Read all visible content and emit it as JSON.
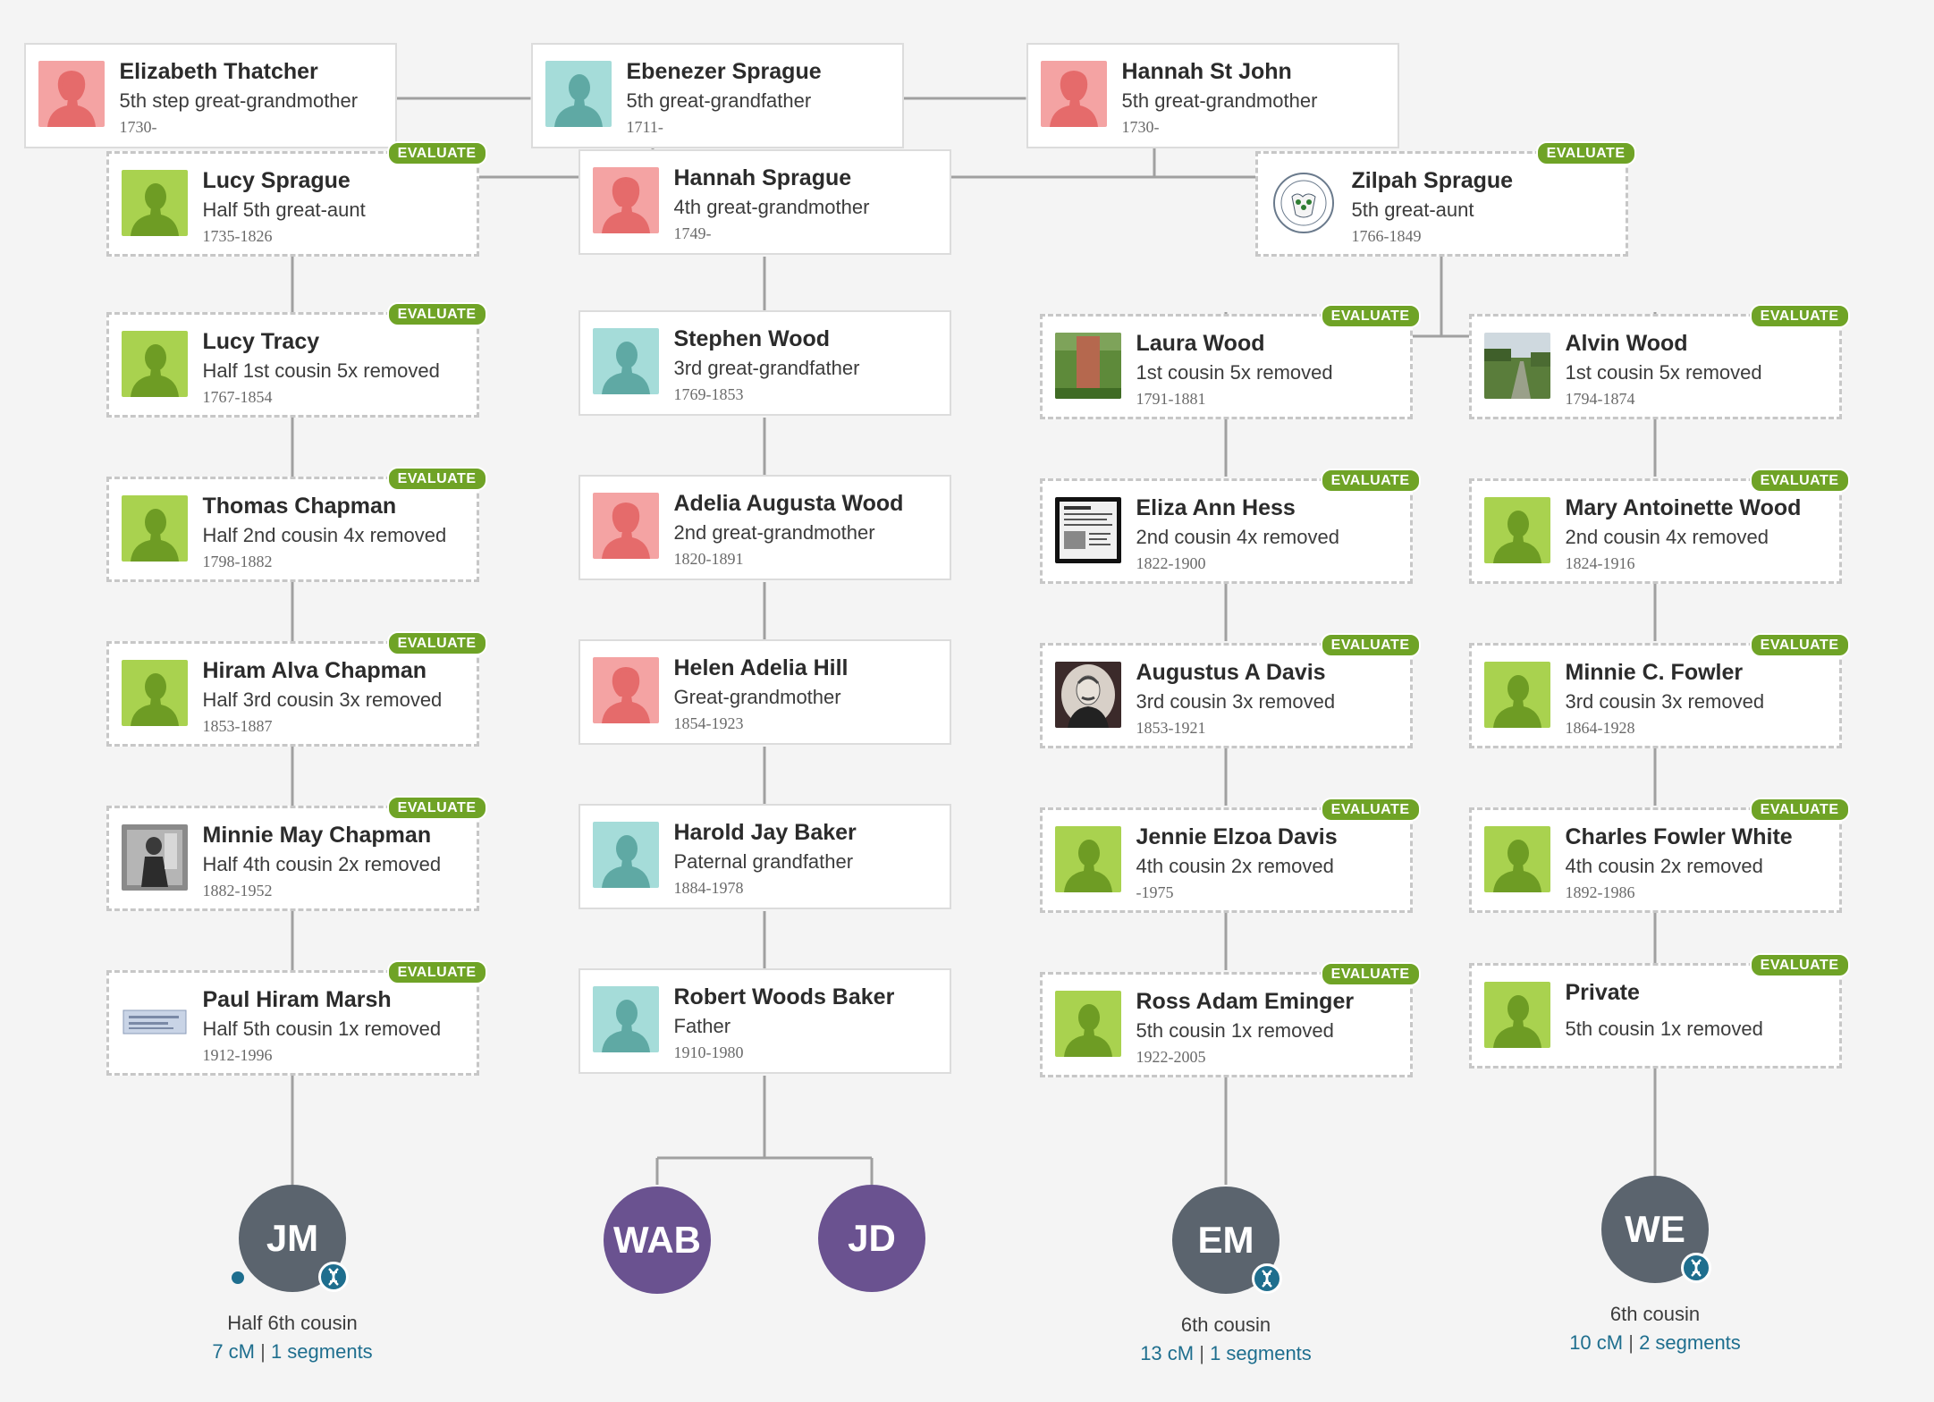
{
  "badge_label": "EVALUATE",
  "colors": {
    "female": "#f4a3a3",
    "male": "#a5dcd9",
    "match_green": "#a9d24f",
    "evaluate_green": "#6fa326",
    "match_gray": "#5b646e",
    "match_purple": "#6a5290",
    "link_blue": "#1e6e8e"
  },
  "top": [
    {
      "name": "Elizabeth Thatcher",
      "relation": "5th step great-grandmother",
      "dates": "1730-",
      "avatar": "female-silhouette-icon"
    },
    {
      "name": "Ebenezer Sprague",
      "relation": "5th great-grandfather",
      "dates": "1711-",
      "avatar": "male-silhouette-icon"
    },
    {
      "name": "Hannah St John",
      "relation": "5th great-grandmother",
      "dates": "1730-",
      "avatar": "female-silhouette-icon"
    }
  ],
  "col1": [
    {
      "name": "Lucy Sprague",
      "relation": "Half 5th great-aunt",
      "dates": "1735-1826",
      "avatar": "green-silhouette-icon"
    },
    {
      "name": "Lucy Tracy",
      "relation": "Half 1st cousin 5x removed",
      "dates": "1767-1854",
      "avatar": "green-silhouette-icon"
    },
    {
      "name": "Thomas Chapman",
      "relation": "Half 2nd cousin 4x removed",
      "dates": "1798-1882",
      "avatar": "green-silhouette-icon"
    },
    {
      "name": "Hiram Alva Chapman",
      "relation": "Half 3rd cousin 3x removed",
      "dates": "1853-1887",
      "avatar": "green-silhouette-icon"
    },
    {
      "name": "Minnie May Chapman",
      "relation": "Half 4th cousin 2x removed",
      "dates": "1882-1952",
      "avatar": "old-photo-icon"
    },
    {
      "name": "Paul Hiram Marsh",
      "relation": "Half 5th cousin 1x removed",
      "dates": "1912-1996",
      "avatar": "document-photo-icon"
    }
  ],
  "col2": [
    {
      "name": "Hannah Sprague",
      "relation": "4th great-grandmother",
      "dates": "1749-",
      "avatar": "female-silhouette-icon"
    },
    {
      "name": "Stephen Wood",
      "relation": "3rd great-grandfather",
      "dates": "1769-1853",
      "avatar": "male-silhouette-icon"
    },
    {
      "name": "Adelia Augusta Wood",
      "relation": "2nd great-grandmother",
      "dates": "1820-1891",
      "avatar": "female-silhouette-icon"
    },
    {
      "name": "Helen Adelia Hill",
      "relation": "Great-grandmother",
      "dates": "1854-1923",
      "avatar": "female-silhouette-icon"
    },
    {
      "name": "Harold Jay Baker",
      "relation": "Paternal grandfather",
      "dates": "1884-1978",
      "avatar": "male-silhouette-icon"
    },
    {
      "name": "Robert Woods Baker",
      "relation": "Father",
      "dates": "1910-1980",
      "avatar": "male-silhouette-icon"
    }
  ],
  "zilpah": {
    "name": "Zilpah Sprague",
    "relation": "5th great-aunt",
    "dates": "1766-1849",
    "avatar": "state-seal-icon"
  },
  "col3": [
    {
      "name": "Laura Wood",
      "relation": "1st cousin 5x removed",
      "dates": "1791-1881",
      "avatar": "gravestone-photo-icon"
    },
    {
      "name": "Eliza Ann Hess",
      "relation": "2nd cousin 4x removed",
      "dates": "1822-1900",
      "avatar": "record-photo-icon"
    },
    {
      "name": "Augustus A Davis",
      "relation": "3rd cousin 3x removed",
      "dates": "1853-1921",
      "avatar": "portrait-photo-icon"
    },
    {
      "name": "Jennie Elzoa Davis",
      "relation": "4th cousin 2x removed",
      "dates": "-1975",
      "avatar": "green-silhouette-icon"
    },
    {
      "name": "Ross Adam Eminger",
      "relation": "5th cousin 1x removed",
      "dates": "1922-2005",
      "avatar": "green-silhouette-icon"
    }
  ],
  "col4": [
    {
      "name": "Alvin Wood",
      "relation": "1st cousin 5x removed",
      "dates": "1794-1874",
      "avatar": "landscape-photo-icon"
    },
    {
      "name": "Mary Antoinette Wood",
      "relation": "2nd cousin 4x removed",
      "dates": "1824-1916",
      "avatar": "green-silhouette-icon"
    },
    {
      "name": "Minnie C. Fowler",
      "relation": "3rd cousin 3x removed",
      "dates": "1864-1928",
      "avatar": "green-silhouette-icon"
    },
    {
      "name": "Charles Fowler White",
      "relation": "4th cousin 2x removed",
      "dates": "1892-1986",
      "avatar": "green-silhouette-icon"
    },
    {
      "name": "Private",
      "relation": "5th cousin 1x removed",
      "dates": "",
      "avatar": "green-silhouette-icon"
    }
  ],
  "matches": [
    {
      "initials": "JM",
      "relation": "Half 6th cousin",
      "cm": "7 cM",
      "segments": "1 segments"
    },
    {
      "initials": "WAB"
    },
    {
      "initials": "JD"
    },
    {
      "initials": "EM",
      "relation": "6th cousin",
      "cm": "13 cM",
      "segments": "1 segments"
    },
    {
      "initials": "WE",
      "relation": "6th cousin",
      "cm": "10 cM",
      "segments": "2 segments"
    }
  ]
}
